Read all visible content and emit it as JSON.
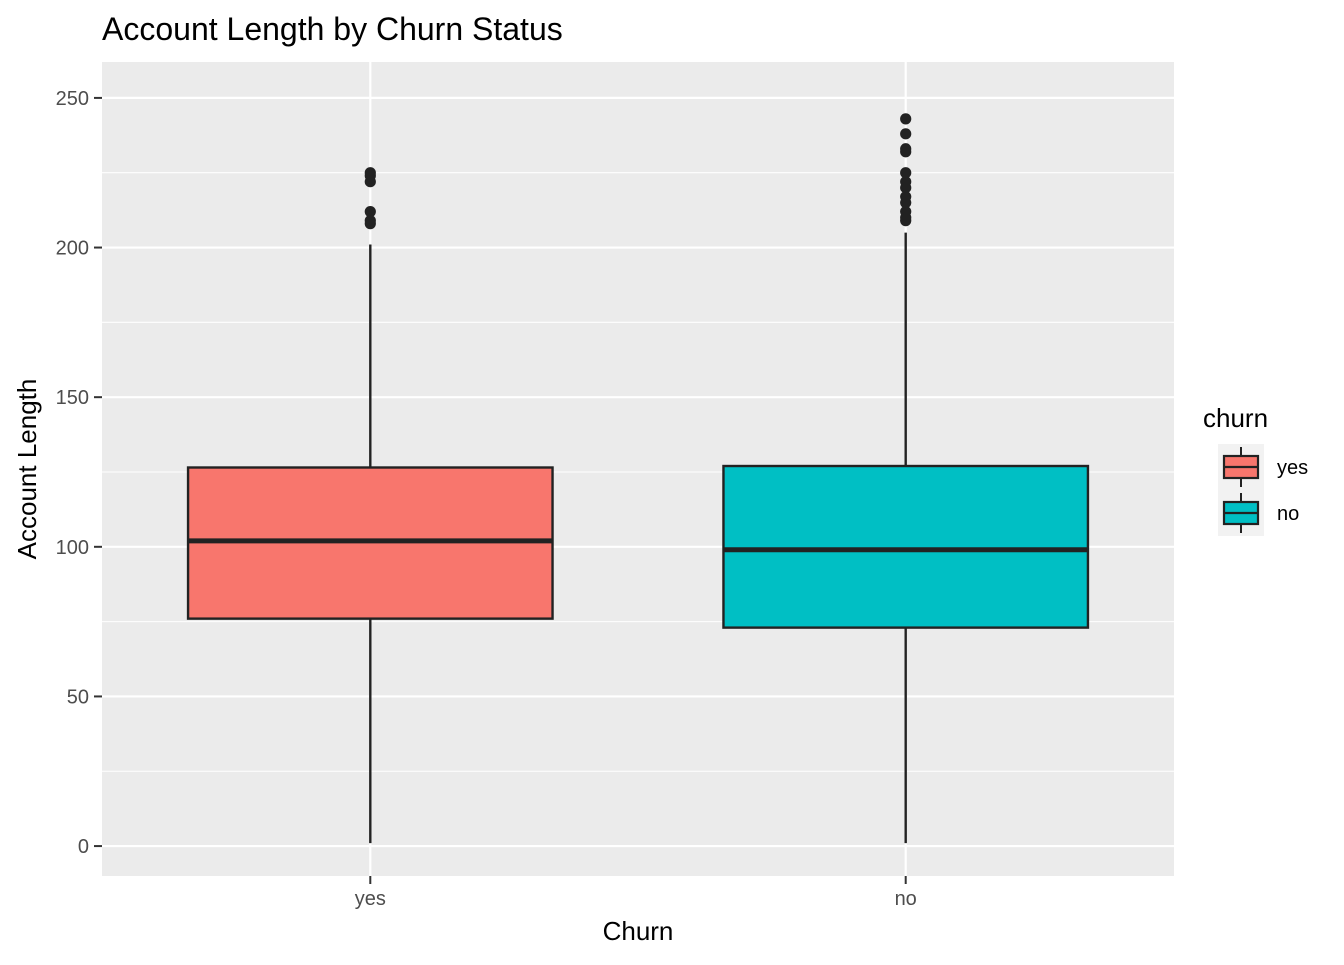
{
  "chart_data": {
    "type": "boxplot",
    "title": "Account Length by Churn Status",
    "xlabel": "Churn",
    "ylabel": "Account Length",
    "categories": [
      "yes",
      "no"
    ],
    "ylim": [
      -10,
      262
    ],
    "yticks": [
      0,
      50,
      100,
      150,
      200,
      250
    ],
    "grid": true,
    "legend": {
      "title": "churn",
      "position": "right",
      "entries": [
        {
          "label": "yes",
          "color": "#F8766D"
        },
        {
          "label": "no",
          "color": "#00BFC4"
        }
      ]
    },
    "boxes": [
      {
        "category": "yes",
        "color": "#F8766D",
        "min": 1,
        "q1": 76,
        "median": 102,
        "q3": 126.5,
        "max": 201,
        "outliers": [
          208,
          209,
          212,
          222,
          224,
          225
        ]
      },
      {
        "category": "no",
        "color": "#00BFC4",
        "min": 1,
        "q1": 73,
        "median": 99,
        "q3": 127,
        "max": 205,
        "outliers": [
          209,
          210,
          212,
          215,
          217,
          220,
          222,
          225,
          232,
          233,
          238,
          243
        ]
      }
    ]
  }
}
